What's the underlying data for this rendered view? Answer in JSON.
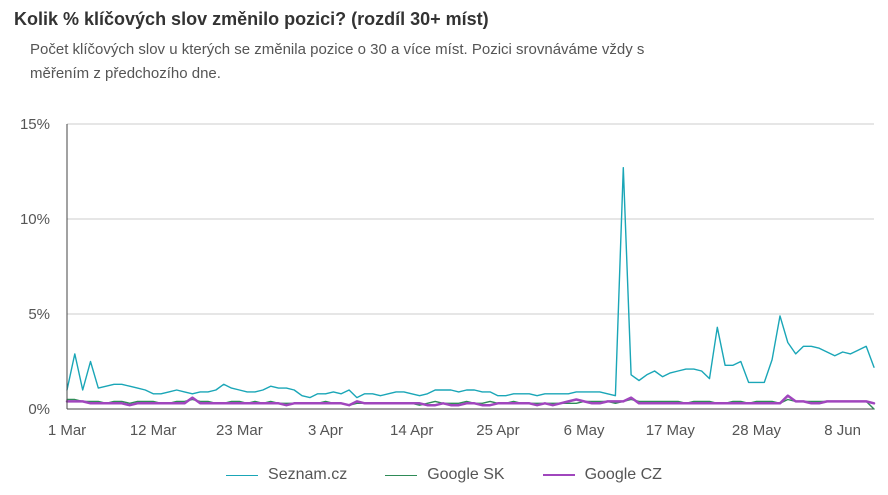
{
  "header": {
    "title": "Kolik % klíčových slov změnilo pozici? (rozdíl 30+ míst)",
    "subtitle": "Počet klíčových slov u kterých se změnila pozice o 30 a více míst. Pozici srovnáváme vždy s měřením z předchozího dne."
  },
  "chart_data": {
    "type": "line",
    "title": "Kolik % klíčových slov změnilo pozici? (rozdíl 30+ míst)",
    "xlabel": "",
    "ylabel": "",
    "ylim": [
      0,
      15
    ],
    "yticks": [
      0,
      5,
      10,
      15
    ],
    "ytick_labels": [
      "0%",
      "5%",
      "10%",
      "15%"
    ],
    "x_start": "1 Mar",
    "x_end": "12 Jun",
    "xtick_labels": [
      "1 Mar",
      "12 Mar",
      "23 Mar",
      "3 Apr",
      "14 Apr",
      "25 Apr",
      "6 May",
      "17 May",
      "28 May",
      "8 Jun"
    ],
    "xtick_days": [
      0,
      11,
      22,
      33,
      44,
      55,
      66,
      77,
      88,
      99
    ],
    "grid": "horizontal",
    "legend_position": "bottom",
    "series": [
      {
        "name": "Seznam.cz",
        "color": "#1aa6b7",
        "width": 1.4,
        "values": [
          1.0,
          2.9,
          1.0,
          2.5,
          1.1,
          1.2,
          1.3,
          1.3,
          1.2,
          1.1,
          1.0,
          0.8,
          0.8,
          0.9,
          1.0,
          0.9,
          0.8,
          0.9,
          0.9,
          1.0,
          1.3,
          1.1,
          1.0,
          0.9,
          0.9,
          1.0,
          1.2,
          1.1,
          1.1,
          1.0,
          0.7,
          0.6,
          0.8,
          0.8,
          0.9,
          0.8,
          1.0,
          0.6,
          0.8,
          0.8,
          0.7,
          0.8,
          0.9,
          0.9,
          0.8,
          0.7,
          0.8,
          1.0,
          1.0,
          1.0,
          0.9,
          1.0,
          1.0,
          0.9,
          0.9,
          0.7,
          0.7,
          0.8,
          0.8,
          0.8,
          0.7,
          0.8,
          0.8,
          0.8,
          0.8,
          0.9,
          0.9,
          0.9,
          0.9,
          0.8,
          0.7,
          12.7,
          1.8,
          1.5,
          1.8,
          2.0,
          1.7,
          1.9,
          2.0,
          2.1,
          2.1,
          2.0,
          1.6,
          4.3,
          2.3,
          2.3,
          2.5,
          1.4,
          1.4,
          1.4,
          2.6,
          4.9,
          3.5,
          2.9,
          3.3,
          3.3,
          3.2,
          3.0,
          2.8,
          3.0,
          2.9,
          3.1,
          3.3,
          2.2
        ]
      },
      {
        "name": "Google SK",
        "color": "#2e8b57",
        "width": 1.4,
        "values": [
          0.5,
          0.5,
          0.4,
          0.4,
          0.4,
          0.3,
          0.4,
          0.4,
          0.3,
          0.4,
          0.4,
          0.4,
          0.3,
          0.3,
          0.4,
          0.4,
          0.5,
          0.4,
          0.4,
          0.3,
          0.3,
          0.4,
          0.4,
          0.3,
          0.4,
          0.3,
          0.4,
          0.3,
          0.3,
          0.3,
          0.3,
          0.3,
          0.3,
          0.4,
          0.3,
          0.3,
          0.2,
          0.3,
          0.3,
          0.3,
          0.3,
          0.3,
          0.3,
          0.3,
          0.3,
          0.2,
          0.3,
          0.4,
          0.3,
          0.3,
          0.3,
          0.4,
          0.3,
          0.3,
          0.4,
          0.3,
          0.3,
          0.4,
          0.3,
          0.3,
          0.3,
          0.3,
          0.3,
          0.3,
          0.3,
          0.3,
          0.4,
          0.4,
          0.4,
          0.4,
          0.3,
          0.4,
          0.5,
          0.4,
          0.4,
          0.4,
          0.4,
          0.4,
          0.4,
          0.3,
          0.4,
          0.4,
          0.4,
          0.3,
          0.3,
          0.4,
          0.4,
          0.3,
          0.4,
          0.4,
          0.4,
          0.3,
          0.5,
          0.4,
          0.4,
          0.4,
          0.4,
          0.4,
          0.4,
          0.4,
          0.4,
          0.4,
          0.4,
          0.0
        ]
      },
      {
        "name": "Google CZ",
        "color": "#a046bd",
        "width": 2.5,
        "values": [
          0.4,
          0.4,
          0.4,
          0.3,
          0.3,
          0.3,
          0.3,
          0.3,
          0.2,
          0.3,
          0.3,
          0.3,
          0.3,
          0.3,
          0.3,
          0.3,
          0.6,
          0.3,
          0.3,
          0.3,
          0.3,
          0.3,
          0.3,
          0.3,
          0.3,
          0.3,
          0.3,
          0.3,
          0.2,
          0.3,
          0.3,
          0.3,
          0.3,
          0.3,
          0.3,
          0.3,
          0.2,
          0.4,
          0.3,
          0.3,
          0.3,
          0.3,
          0.3,
          0.3,
          0.3,
          0.3,
          0.2,
          0.2,
          0.3,
          0.2,
          0.2,
          0.3,
          0.3,
          0.2,
          0.2,
          0.3,
          0.3,
          0.3,
          0.3,
          0.3,
          0.2,
          0.3,
          0.2,
          0.3,
          0.4,
          0.5,
          0.4,
          0.3,
          0.3,
          0.4,
          0.4,
          0.4,
          0.6,
          0.3,
          0.3,
          0.3,
          0.3,
          0.3,
          0.3,
          0.3,
          0.3,
          0.3,
          0.3,
          0.3,
          0.3,
          0.3,
          0.3,
          0.3,
          0.3,
          0.3,
          0.3,
          0.3,
          0.7,
          0.4,
          0.4,
          0.3,
          0.3,
          0.4,
          0.4,
          0.4,
          0.4,
          0.4,
          0.4,
          0.3
        ]
      }
    ]
  }
}
